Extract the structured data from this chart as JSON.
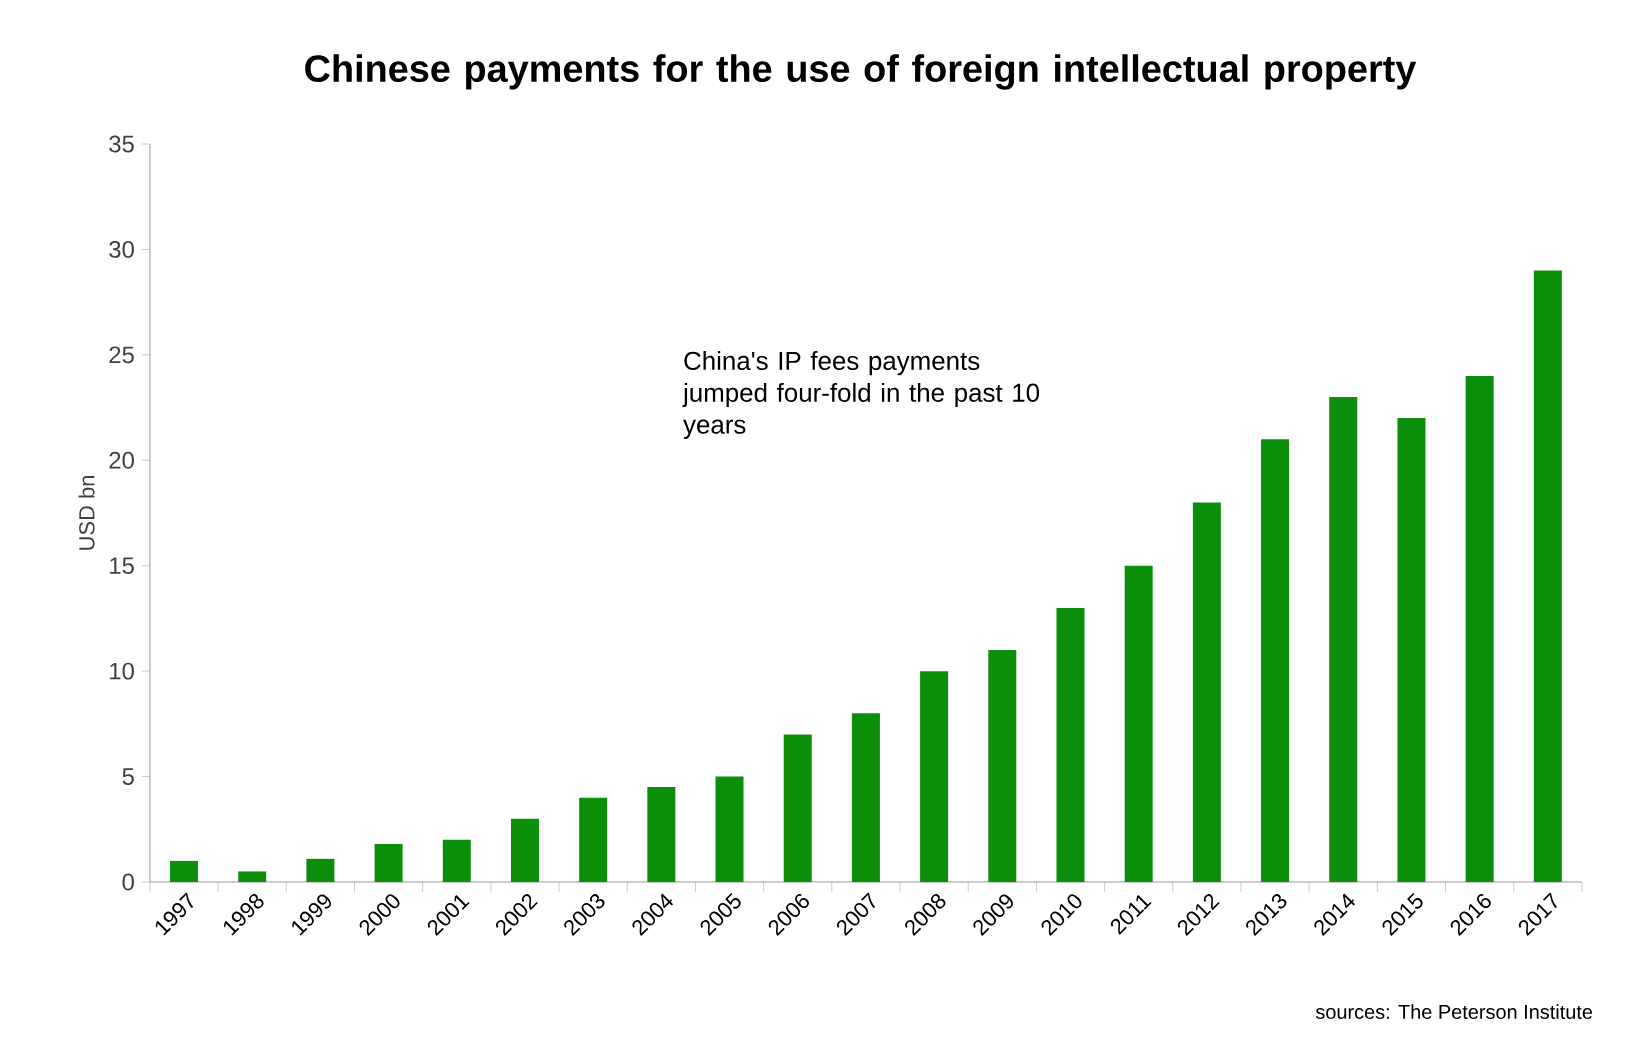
{
  "chart_data": {
    "type": "bar",
    "title": "Chinese payments for the use of foreign intellectual property",
    "ylabel": "USD bn",
    "categories": [
      "1997",
      "1998",
      "1999",
      "2000",
      "2001",
      "2002",
      "2003",
      "2004",
      "2005",
      "2006",
      "2007",
      "2008",
      "2009",
      "2010",
      "2011",
      "2012",
      "2013",
      "2014",
      "2015",
      "2016",
      "2017"
    ],
    "values": [
      1.0,
      0.5,
      1.1,
      1.8,
      2.0,
      3.0,
      4.0,
      4.5,
      5.0,
      7.0,
      8.0,
      10.0,
      11.0,
      13.0,
      15.0,
      18.0,
      21.0,
      23.0,
      22.0,
      24.0,
      29.0
    ],
    "color": "#0b8f0b",
    "ylim": [
      0,
      35
    ],
    "yticks": [
      0,
      5,
      10,
      15,
      20,
      25,
      30,
      35
    ],
    "annotations": [
      "China's IP fees payments jumped four-fold in the past 10 years",
      "sources: The Peterson Institute"
    ]
  }
}
